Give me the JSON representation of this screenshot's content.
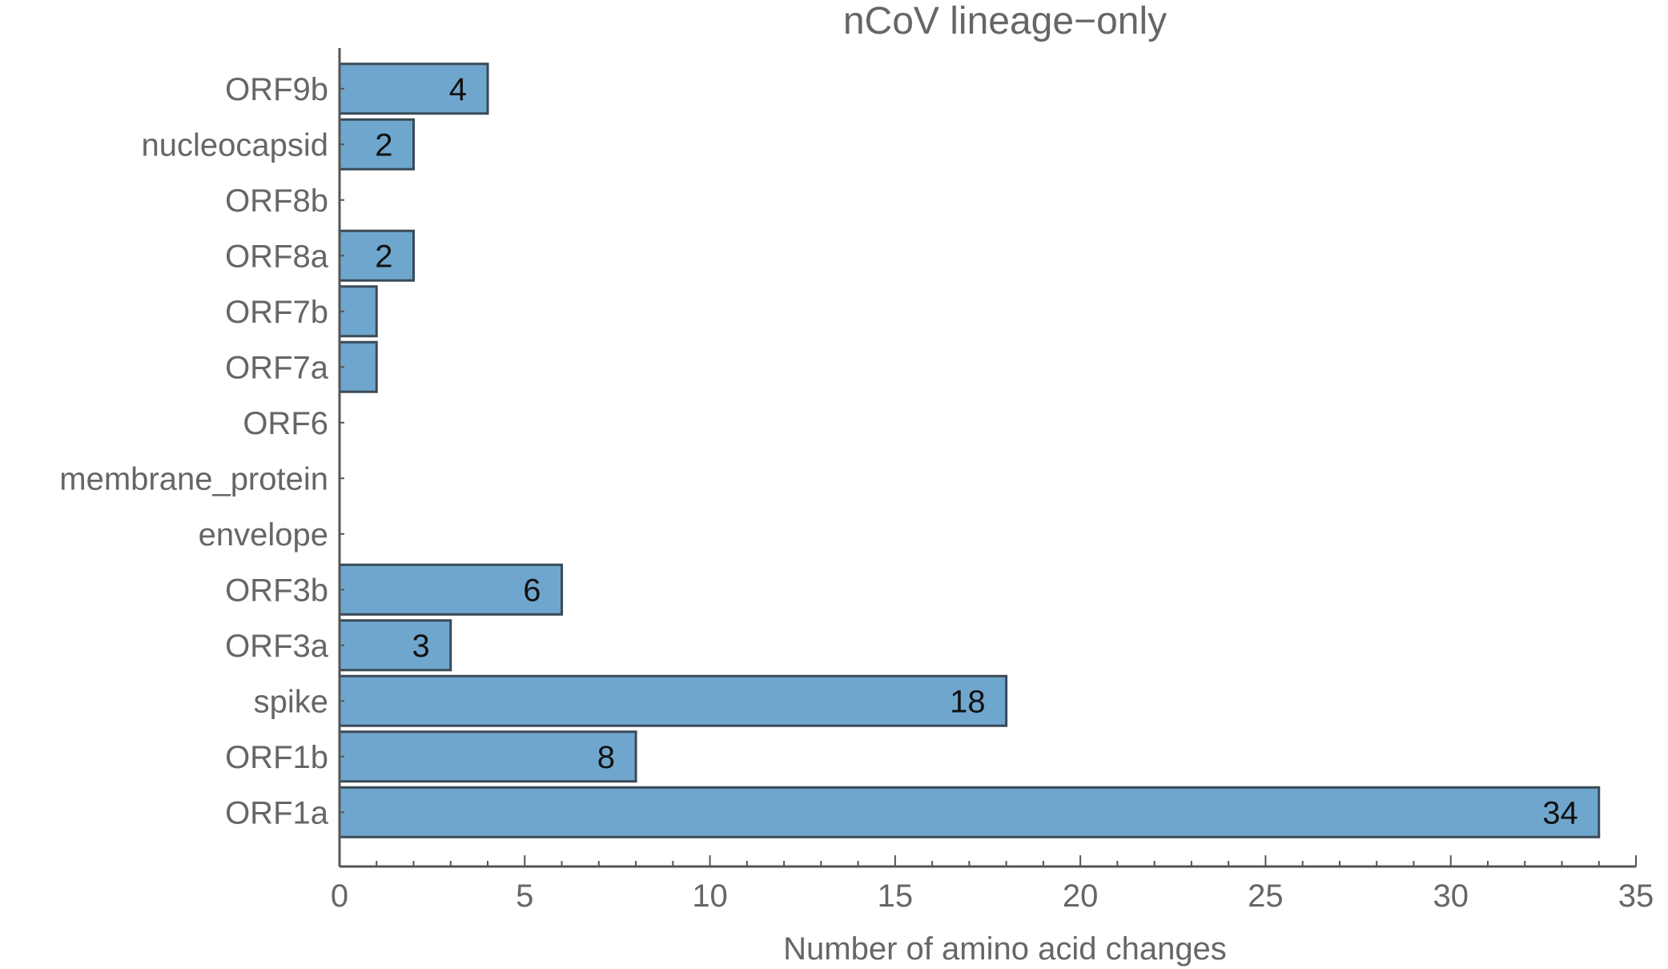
{
  "chart_data": {
    "type": "bar",
    "orientation": "horizontal",
    "title": "nCoV lineage−only",
    "xlabel": "Number of amino acid changes",
    "ylabel": "",
    "xlim": [
      0,
      35
    ],
    "xticks": [
      0,
      5,
      10,
      15,
      20,
      25,
      30,
      35
    ],
    "categories": [
      "ORF1a",
      "ORF1b",
      "spike",
      "ORF3a",
      "ORF3b",
      "envelope",
      "membrane_protein",
      "ORF6",
      "ORF7a",
      "ORF7b",
      "ORF8a",
      "ORF8b",
      "nucleocapsid",
      "ORF9b"
    ],
    "values": [
      34,
      8,
      18,
      3,
      6,
      0,
      0,
      0,
      1,
      1,
      2,
      0,
      2,
      4
    ],
    "data_labels": [
      "34",
      "8",
      "18",
      "3",
      "6",
      "",
      "",
      "",
      "",
      "",
      "2",
      "",
      "2",
      "4"
    ],
    "grid": false,
    "legend": "none",
    "colors": {
      "bar_fill": "#6fa6cd",
      "bar_stroke": "#3a4a57",
      "axis": "#555555",
      "text": "#666666",
      "data_label": "#111111"
    }
  }
}
